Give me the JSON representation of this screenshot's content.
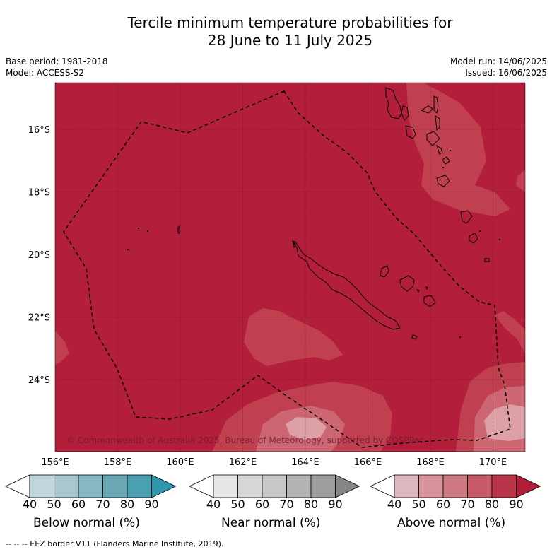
{
  "title_line1": "Tercile minimum temperature probabilities for",
  "title_line2": "28 June to 11 July 2025",
  "base_period": "Base period: 1981-2018",
  "model": "Model: ACCESS-S2",
  "model_run": "Model run: 14/06/2025",
  "issued": "Issued: 16/06/2025",
  "copyright": "© Commonwealth of Australia 2025, Bureau of Meteorology, supported by COSPPac",
  "lon_ticks": [
    "156°E",
    "158°E",
    "160°E",
    "162°E",
    "164°E",
    "166°E",
    "168°E",
    "170°E"
  ],
  "lat_ticks": [
    "16°S",
    "18°S",
    "20°S",
    "22°S",
    "24°S"
  ],
  "colorbars": {
    "below": {
      "label": "Below normal (%)",
      "ticks": [
        "40",
        "50",
        "60",
        "70",
        "80",
        "90"
      ],
      "colors": [
        "#ffffff",
        "#c2d7dd",
        "#a6c8ce",
        "#87b8c1",
        "#69a9b5",
        "#4aa0b0",
        "#2f97aa"
      ]
    },
    "near": {
      "label": "Near normal (%)",
      "ticks": [
        "40",
        "50",
        "60",
        "70",
        "80",
        "90"
      ],
      "colors": [
        "#ffffff",
        "#e6e6e6",
        "#d8d8d8",
        "#c8c8c8",
        "#b4b4b4",
        "#9e9e9e",
        "#868686"
      ]
    },
    "above": {
      "label": "Above normal (%)",
      "ticks": [
        "40",
        "50",
        "60",
        "70",
        "80",
        "90"
      ],
      "colors": [
        "#ffffff",
        "#dfb7bf",
        "#d9939b",
        "#cd7a82",
        "#c45b67",
        "#b8354a",
        "#b01c3a"
      ]
    }
  },
  "footer": "--  --  -- EEZ border V11 (Flanders Marine Institute, 2019).",
  "map_colors": {
    "base": "#b31e3b",
    "lighter": "#c1404f",
    "light": "#cb6672",
    "lightest": "#dca0a6"
  }
}
